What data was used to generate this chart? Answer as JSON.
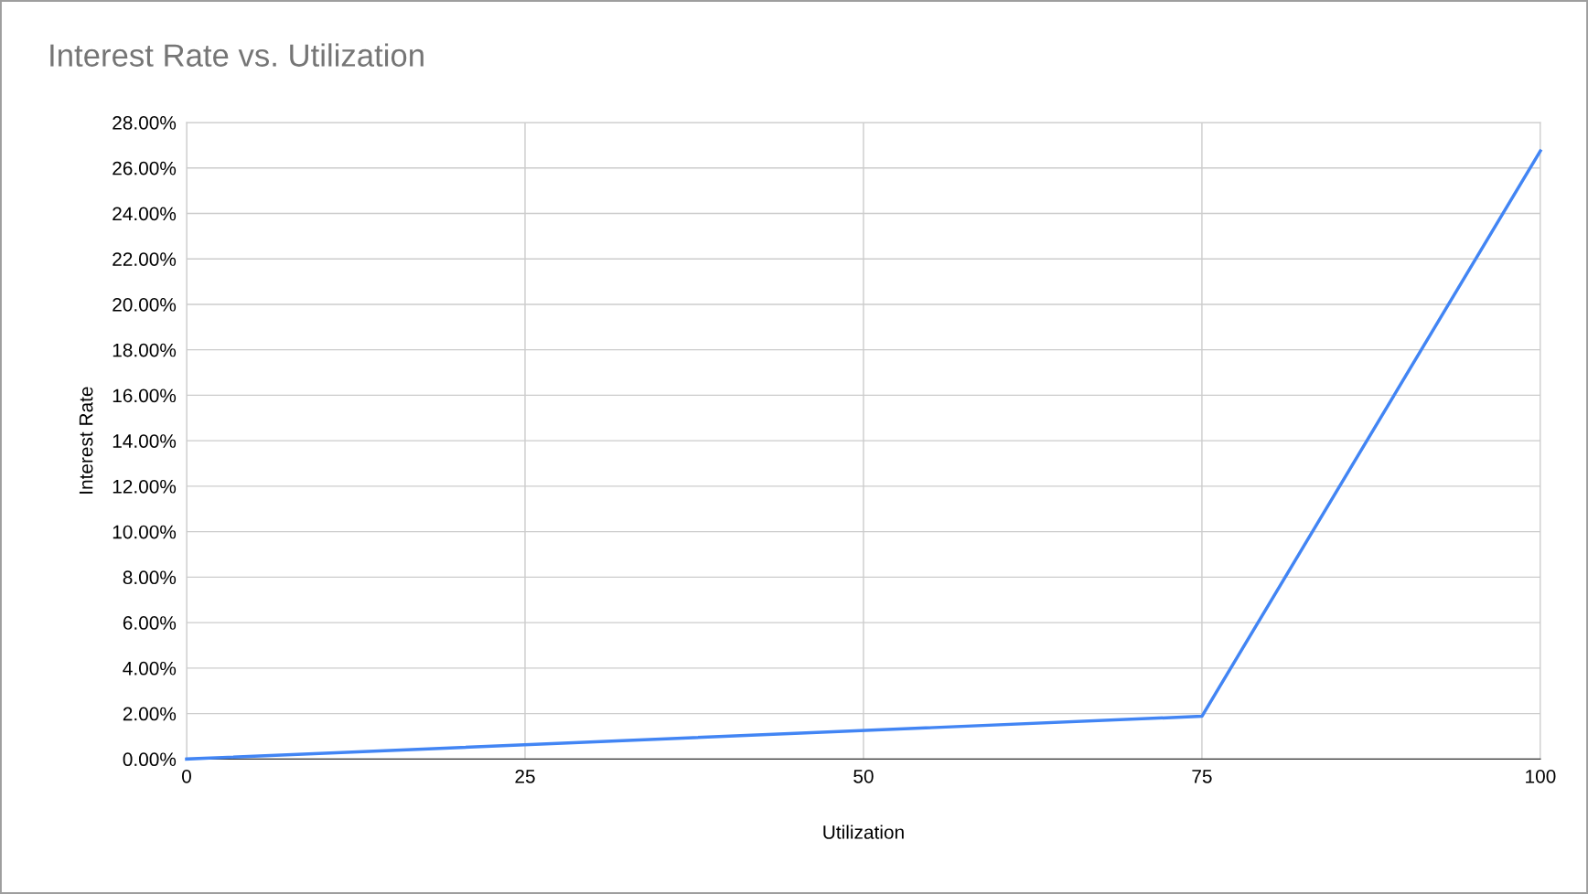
{
  "chart_data": {
    "type": "line",
    "title": "Interest Rate vs. Utilization",
    "xlabel": "Utilization",
    "ylabel": "Interest Rate",
    "x": [
      0,
      75,
      100
    ],
    "series": [
      {
        "color": "#4285f4",
        "values": [
          0,
          1.88,
          26.75
        ]
      }
    ],
    "xlim": [
      0,
      100
    ],
    "xticks": [
      0,
      25,
      50,
      75,
      100
    ],
    "ylim": [
      0,
      28
    ],
    "yticks": [
      {
        "value": 0,
        "label": "0.00%"
      },
      {
        "value": 2,
        "label": "2.00%"
      },
      {
        "value": 4,
        "label": "4.00%"
      },
      {
        "value": 6,
        "label": "6.00%"
      },
      {
        "value": 8,
        "label": "8.00%"
      },
      {
        "value": 10,
        "label": "10.00%"
      },
      {
        "value": 12,
        "label": "12.00%"
      },
      {
        "value": 14,
        "label": "14.00%"
      },
      {
        "value": 16,
        "label": "16.00%"
      },
      {
        "value": 18,
        "label": "18.00%"
      },
      {
        "value": 20,
        "label": "20.00%"
      },
      {
        "value": 22,
        "label": "22.00%"
      },
      {
        "value": 24,
        "label": "24.00%"
      },
      {
        "value": 26,
        "label": "26.00%"
      },
      {
        "value": 28,
        "label": "28.00%"
      }
    ],
    "grid": true,
    "legend": false,
    "marker": "none",
    "line_style": "solid"
  }
}
